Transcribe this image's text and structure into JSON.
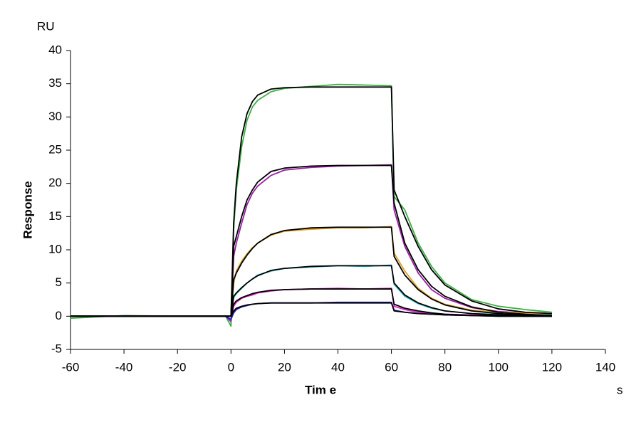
{
  "chart_data": {
    "type": "line",
    "y_unit": "RU",
    "ylabel": "Response",
    "xlabel": "Tim e",
    "x_unit": "s",
    "xlim": [
      -60,
      140
    ],
    "xticks": [
      -60,
      -40,
      -20,
      0,
      20,
      40,
      60,
      80,
      100,
      120,
      140
    ],
    "ylim": [
      -5,
      40
    ],
    "yticks": [
      -5,
      0,
      5,
      10,
      15,
      20,
      25,
      30,
      35,
      40
    ],
    "grid": false,
    "x": [
      -60,
      -40,
      -20,
      -2,
      0,
      1,
      2,
      4,
      6,
      8,
      10,
      15,
      20,
      30,
      40,
      50,
      60,
      61,
      65,
      70,
      75,
      80,
      90,
      100,
      110,
      120
    ],
    "series": [
      {
        "color": "#3cb043",
        "values": [
          -0.3,
          0.1,
          0,
          0,
          -1.5,
          13,
          19,
          25.5,
          29.5,
          31.5,
          32.5,
          33.8,
          34.3,
          34.6,
          34.9,
          34.8,
          34.7,
          18,
          16,
          11,
          7.5,
          5,
          2.5,
          1.5,
          1,
          0.6
        ]
      },
      {
        "color": "#9b1fa8",
        "values": [
          0,
          0,
          0,
          0,
          -0.8,
          9,
          11,
          14,
          16.8,
          18.5,
          19.6,
          21.2,
          22,
          22.4,
          22.6,
          22.7,
          22.8,
          16,
          10.5,
          6.5,
          4,
          2.7,
          1.3,
          0.7,
          0.5,
          0.4
        ]
      },
      {
        "color": "#e0a020",
        "values": [
          0,
          0,
          0,
          0,
          -0.5,
          5,
          6.8,
          8.3,
          9.4,
          10.3,
          11,
          12.2,
          12.8,
          13.1,
          13.3,
          13.3,
          13.5,
          9.5,
          6.8,
          4.2,
          2.7,
          1.8,
          0.9,
          0.6,
          0.5,
          0.4
        ]
      },
      {
        "color": "#20b8c8",
        "values": [
          0,
          0,
          0,
          0,
          -0.5,
          2.8,
          3.4,
          4.2,
          5,
          5.6,
          6.2,
          6.8,
          7.2,
          7.4,
          7.6,
          7.5,
          7.7,
          4.8,
          3,
          1.9,
          1.2,
          0.8,
          0.4,
          0.3,
          0.2,
          0.2
        ]
      },
      {
        "color": "#e020c8",
        "values": [
          0,
          0,
          0,
          0,
          -0.5,
          1.5,
          2.1,
          2.7,
          3,
          3.2,
          3.5,
          3.8,
          4,
          4.1,
          4.2,
          4.1,
          4.2,
          1.5,
          1,
          0.6,
          0.4,
          0.3,
          0.2,
          0.1,
          0.1,
          0.1
        ]
      },
      {
        "color": "#2020c0",
        "values": [
          0,
          0,
          0,
          0,
          -0.5,
          0.5,
          1,
          1.4,
          1.6,
          1.8,
          1.9,
          2,
          2,
          2,
          2.1,
          2.1,
          2.1,
          0.9,
          0.6,
          0.4,
          0.3,
          0.2,
          0.1,
          0,
          0,
          0
        ]
      },
      {
        "color": "#000000",
        "values": [
          0,
          0,
          0,
          0,
          0,
          14,
          20,
          27,
          30.5,
          32.3,
          33.3,
          34.2,
          34.4,
          34.5,
          34.5,
          34.5,
          34.5,
          19,
          15,
          10.5,
          7,
          4.7,
          2.3,
          1.1,
          0.6,
          0.4
        ]
      },
      {
        "color": "#000000",
        "values": [
          0,
          0,
          0,
          0,
          0,
          10.5,
          12,
          15,
          17.5,
          19,
          20.2,
          21.8,
          22.3,
          22.6,
          22.7,
          22.7,
          22.7,
          17,
          11,
          7,
          4.5,
          3,
          1.4,
          0.6,
          0.3,
          0.1
        ]
      },
      {
        "color": "#000000",
        "values": [
          0,
          0,
          0,
          0,
          0,
          5.5,
          6.5,
          8,
          9.2,
          10.2,
          11,
          12.3,
          12.9,
          13.3,
          13.4,
          13.4,
          13.4,
          9,
          6.2,
          4,
          2.6,
          1.7,
          0.8,
          0.4,
          0.2,
          0.1
        ]
      },
      {
        "color": "#000000",
        "values": [
          0,
          0,
          0,
          0,
          0,
          3,
          3.5,
          4.3,
          5,
          5.6,
          6.1,
          6.9,
          7.2,
          7.5,
          7.6,
          7.6,
          7.6,
          5,
          3.2,
          2,
          1.3,
          0.8,
          0.4,
          0.2,
          0.1,
          0
        ]
      },
      {
        "color": "#000000",
        "values": [
          0,
          0,
          0,
          0,
          0,
          1.8,
          2.3,
          2.8,
          3.1,
          3.4,
          3.6,
          3.9,
          4,
          4.1,
          4.1,
          4.1,
          4.1,
          1.8,
          1.2,
          0.8,
          0.5,
          0.3,
          0.1,
          0.1,
          0,
          0
        ]
      },
      {
        "color": "#000000",
        "values": [
          0,
          0,
          0,
          0,
          0,
          0.8,
          1.2,
          1.5,
          1.7,
          1.8,
          1.9,
          2,
          2,
          2,
          2,
          2,
          2,
          0.8,
          0.6,
          0.4,
          0.3,
          0.2,
          0.1,
          0,
          0,
          0
        ]
      }
    ]
  }
}
